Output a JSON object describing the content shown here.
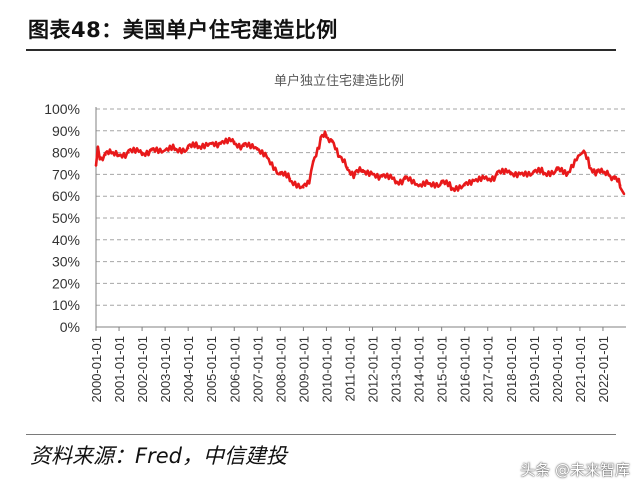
{
  "figure_title": "图表48：美国单户住宅建造比例",
  "source_text": "资料来源：Fred，中信建投",
  "watermark": "头条 @未来智库",
  "chart_data": {
    "type": "line",
    "title": "单户独立住宅建造比例",
    "xlabel": "",
    "ylabel": "",
    "ylim": [
      0,
      1
    ],
    "yticks": [
      "0%",
      "10%",
      "20%",
      "30%",
      "40%",
      "50%",
      "60%",
      "70%",
      "80%",
      "90%",
      "100%"
    ],
    "xticks": [
      "2000-01-01",
      "2001-01-01",
      "2002-01-01",
      "2003-01-01",
      "2004-01-01",
      "2005-01-01",
      "2006-01-01",
      "2007-01-01",
      "2008-01-01",
      "2009-01-01",
      "2010-01-01",
      "2011-01-01",
      "2012-01-01",
      "2013-01-01",
      "2014-01-01",
      "2015-01-01",
      "2016-01-01",
      "2017-01-01",
      "2018-01-01",
      "2019-01-01",
      "2020-01-01",
      "2021-01-01",
      "2022-01-01"
    ],
    "grid": true,
    "legend": "none",
    "series": [
      {
        "color": "#e8191a",
        "x": [
          "2000-01",
          "2000-02",
          "2000-03",
          "2000-06",
          "2000-09",
          "2001-01",
          "2001-06",
          "2002-01",
          "2002-06",
          "2003-01",
          "2003-06",
          "2004-01",
          "2004-06",
          "2005-01",
          "2005-06",
          "2006-01",
          "2006-06",
          "2007-01",
          "2007-06",
          "2008-01",
          "2008-06",
          "2009-01",
          "2009-04",
          "2009-06",
          "2009-10",
          "2010-01",
          "2010-04",
          "2010-08",
          "2010-12",
          "2011-04",
          "2011-08",
          "2012-01",
          "2012-06",
          "2013-01",
          "2013-06",
          "2014-01",
          "2014-06",
          "2015-01",
          "2015-06",
          "2016-01",
          "2016-06",
          "2017-01",
          "2017-06",
          "2018-01",
          "2018-06",
          "2019-01",
          "2019-06",
          "2020-01",
          "2020-06",
          "2021-01",
          "2021-03",
          "2021-06",
          "2021-10",
          "2022-01",
          "2022-04",
          "2022-07",
          "2022-10",
          "2022-12"
        ],
        "values": [
          0.74,
          0.82,
          0.78,
          0.79,
          0.8,
          0.79,
          0.8,
          0.8,
          0.81,
          0.81,
          0.82,
          0.82,
          0.83,
          0.84,
          0.84,
          0.85,
          0.83,
          0.82,
          0.78,
          0.7,
          0.68,
          0.64,
          0.66,
          0.76,
          0.86,
          0.88,
          0.85,
          0.78,
          0.73,
          0.7,
          0.72,
          0.7,
          0.69,
          0.67,
          0.68,
          0.65,
          0.66,
          0.66,
          0.64,
          0.65,
          0.67,
          0.68,
          0.7,
          0.71,
          0.7,
          0.71,
          0.71,
          0.72,
          0.7,
          0.79,
          0.8,
          0.74,
          0.71,
          0.71,
          0.7,
          0.68,
          0.65,
          0.61
        ]
      }
    ]
  }
}
